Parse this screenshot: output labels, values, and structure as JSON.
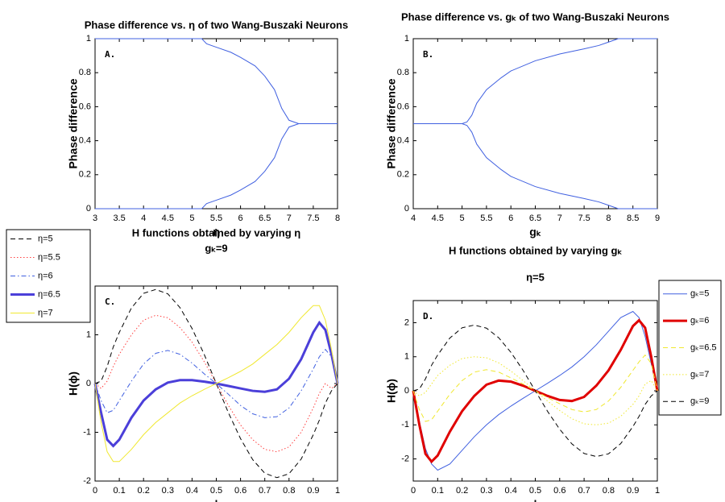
{
  "chart_data": [
    {
      "type": "line",
      "title": "Phase difference vs. η of two Wang-Buszaki Neurons",
      "xlabel": "η",
      "ylabel": "Phase difference",
      "annotation": "A.",
      "x": [
        3,
        3.5,
        4,
        4.5,
        5,
        5.2,
        5.3,
        5.5,
        5.8,
        6,
        6.3,
        6.5,
        6.7,
        6.85,
        7,
        7.2,
        7.5,
        8
      ],
      "series": [
        {
          "color": "#4060e0",
          "style": "solid",
          "width": 1,
          "values": [
            1,
            1,
            1,
            1,
            1,
            1,
            0.97,
            0.95,
            0.92,
            0.89,
            0.84,
            0.78,
            0.7,
            0.59,
            0.52,
            0.5,
            0.5,
            0.5
          ]
        },
        {
          "color": "#4060e0",
          "style": "solid",
          "width": 1,
          "values": [
            0,
            0,
            0,
            0,
            0,
            0,
            0.03,
            0.05,
            0.08,
            0.11,
            0.16,
            0.22,
            0.3,
            0.41,
            0.48,
            0.5,
            0.5,
            0.5
          ]
        }
      ],
      "xlim": [
        3,
        8
      ],
      "xticks": [
        3,
        3.5,
        4,
        4.5,
        5,
        5.5,
        6,
        6.5,
        7,
        7.5,
        8
      ],
      "ylim": [
        0,
        1
      ],
      "yticks": [
        0,
        0.2,
        0.4,
        0.6,
        0.8,
        1
      ]
    },
    {
      "type": "line",
      "title": "Phase difference vs. gₖ of two Wang-Buszaki Neurons",
      "xlabel": "gₖ",
      "ylabel": "Phase difference",
      "annotation": "B.",
      "x": [
        4,
        4.5,
        5,
        5.1,
        5.2,
        5.3,
        5.5,
        5.8,
        6,
        6.5,
        7,
        7.5,
        7.8,
        8,
        8.1,
        8.2,
        8.5,
        9
      ],
      "series": [
        {
          "color": "#4060e0",
          "style": "solid",
          "width": 1,
          "values": [
            0.5,
            0.5,
            0.5,
            0.51,
            0.55,
            0.62,
            0.7,
            0.77,
            0.81,
            0.87,
            0.91,
            0.94,
            0.96,
            0.98,
            0.99,
            1,
            1,
            1
          ]
        },
        {
          "color": "#4060e0",
          "style": "solid",
          "width": 1,
          "values": [
            0.5,
            0.5,
            0.5,
            0.49,
            0.45,
            0.38,
            0.3,
            0.23,
            0.19,
            0.13,
            0.09,
            0.06,
            0.04,
            0.02,
            0.01,
            0,
            0,
            0
          ]
        }
      ],
      "xlim": [
        4,
        9
      ],
      "xticks": [
        4,
        4.5,
        5,
        5.5,
        6,
        6.5,
        7,
        7.5,
        8,
        8.5,
        9
      ],
      "ylim": [
        0,
        1
      ],
      "yticks": [
        0,
        0.2,
        0.4,
        0.6,
        0.8,
        1
      ]
    },
    {
      "type": "line",
      "title": "H functions obtained by varying η",
      "subtitle": "gₖ=9",
      "xlabel": "ϕ",
      "ylabel": "H(ϕ)",
      "annotation": "C.",
      "legend": "outside-left",
      "x": [
        0,
        0.025,
        0.05,
        0.075,
        0.1,
        0.15,
        0.2,
        0.25,
        0.3,
        0.35,
        0.4,
        0.45,
        0.5,
        0.55,
        0.6,
        0.65,
        0.7,
        0.75,
        0.8,
        0.85,
        0.9,
        0.925,
        0.95,
        0.975,
        1
      ],
      "series": [
        {
          "name": "η=5",
          "color": "#000000",
          "style": "dashed",
          "width": 1,
          "values": [
            0,
            0.05,
            0.35,
            0.75,
            1.05,
            1.55,
            1.85,
            1.93,
            1.84,
            1.56,
            1.13,
            0.6,
            0,
            -0.6,
            -1.13,
            -1.56,
            -1.84,
            -1.93,
            -1.85,
            -1.55,
            -1.05,
            -0.75,
            -0.4,
            -0.15,
            0
          ]
        },
        {
          "name": "η=5.5",
          "color": "#ff4040",
          "style": "dotted",
          "width": 1,
          "values": [
            0,
            -0.1,
            0.05,
            0.35,
            0.6,
            1,
            1.3,
            1.4,
            1.35,
            1.15,
            0.85,
            0.45,
            0,
            -0.45,
            -0.85,
            -1.15,
            -1.35,
            -1.4,
            -1.3,
            -1,
            -0.5,
            -0.2,
            0,
            -0.1,
            0
          ]
        },
        {
          "name": "η=6",
          "color": "#4060e0",
          "style": "dashdot",
          "width": 1,
          "values": [
            0,
            -0.35,
            -0.6,
            -0.55,
            -0.35,
            0.05,
            0.4,
            0.62,
            0.68,
            0.6,
            0.42,
            0.2,
            0,
            -0.22,
            -0.45,
            -0.62,
            -0.7,
            -0.68,
            -0.5,
            -0.15,
            0.3,
            0.55,
            0.7,
            0.55,
            0
          ]
        },
        {
          "name": "η=6.5",
          "color": "#4b3fd9",
          "style": "solid",
          "width": 3,
          "values": [
            0,
            -0.6,
            -1.15,
            -1.28,
            -1.15,
            -0.7,
            -0.35,
            -0.12,
            0.02,
            0.07,
            0.07,
            0.04,
            0,
            -0.05,
            -0.1,
            -0.15,
            -0.17,
            -0.12,
            0.1,
            0.5,
            1.05,
            1.25,
            1.1,
            0.6,
            0
          ]
        },
        {
          "name": "η=7",
          "color": "#f0e830",
          "style": "solid",
          "width": 1,
          "values": [
            0,
            -0.8,
            -1.4,
            -1.6,
            -1.6,
            -1.35,
            -1.05,
            -0.8,
            -0.6,
            -0.4,
            -0.25,
            -0.12,
            0,
            0.12,
            0.25,
            0.4,
            0.6,
            0.8,
            1.05,
            1.35,
            1.6,
            1.6,
            1.3,
            0.7,
            0
          ]
        }
      ],
      "xlim": [
        0,
        1
      ],
      "xticks": [
        0,
        0.1,
        0.2,
        0.3,
        0.4,
        0.5,
        0.6,
        0.7,
        0.8,
        0.9,
        1
      ],
      "ylim": [
        -2,
        2
      ],
      "yticks": [
        -2,
        -1,
        0,
        1,
        2
      ]
    },
    {
      "type": "line",
      "title": "H functions obtained by varying gₖ",
      "subtitle": "η=5",
      "xlabel": "ϕ",
      "ylabel": "H(ϕ)",
      "annotation": "D.",
      "legend": "outside-right",
      "x": [
        0,
        0.025,
        0.05,
        0.075,
        0.1,
        0.15,
        0.2,
        0.25,
        0.3,
        0.35,
        0.4,
        0.45,
        0.5,
        0.55,
        0.6,
        0.65,
        0.7,
        0.75,
        0.8,
        0.85,
        0.9,
        0.925,
        0.95,
        0.975,
        1
      ],
      "series": [
        {
          "name": "gₖ=5",
          "color": "#4060e0",
          "style": "solid",
          "width": 1,
          "values": [
            0,
            -0.9,
            -1.7,
            -2.15,
            -2.33,
            -2.15,
            -1.75,
            -1.35,
            -1,
            -0.7,
            -0.45,
            -0.22,
            0,
            0.22,
            0.45,
            0.7,
            1,
            1.35,
            1.75,
            2.15,
            2.33,
            2.15,
            1.6,
            0.8,
            0
          ]
        },
        {
          "name": "gₖ=6",
          "color": "#e00000",
          "style": "solid",
          "width": 3,
          "values": [
            0,
            -1,
            -1.85,
            -2.08,
            -1.9,
            -1.2,
            -0.6,
            -0.15,
            0.18,
            0.3,
            0.27,
            0.15,
            0,
            -0.15,
            -0.27,
            -0.3,
            -0.18,
            0.15,
            0.6,
            1.2,
            1.9,
            2.07,
            1.85,
            1,
            0
          ]
        },
        {
          "name": "gₖ=6.5",
          "color": "#f0e830",
          "style": "dashed",
          "width": 1,
          "values": [
            0,
            -0.55,
            -0.9,
            -0.85,
            -0.6,
            -0.1,
            0.3,
            0.55,
            0.62,
            0.55,
            0.38,
            0.2,
            0,
            -0.2,
            -0.38,
            -0.55,
            -0.62,
            -0.55,
            -0.3,
            0.1,
            0.6,
            0.85,
            1.05,
            0.8,
            0
          ]
        },
        {
          "name": "gₖ=7",
          "color": "#f0e830",
          "style": "dotted",
          "width": 1,
          "values": [
            0,
            -0.15,
            -0.05,
            0.2,
            0.45,
            0.75,
            0.95,
            1,
            0.97,
            0.82,
            0.58,
            0.3,
            0,
            -0.3,
            -0.58,
            -0.82,
            -0.97,
            -1,
            -0.95,
            -0.75,
            -0.4,
            -0.15,
            0.2,
            0.3,
            0
          ]
        },
        {
          "name": "gₖ=9",
          "color": "#000000",
          "style": "dashed",
          "width": 1,
          "values": [
            0,
            0.05,
            0.35,
            0.75,
            1.05,
            1.55,
            1.85,
            1.93,
            1.84,
            1.56,
            1.13,
            0.6,
            0,
            -0.6,
            -1.13,
            -1.56,
            -1.84,
            -1.93,
            -1.85,
            -1.55,
            -1.05,
            -0.75,
            -0.4,
            -0.15,
            0
          ]
        }
      ],
      "xlim": [
        0,
        1
      ],
      "xticks": [
        0,
        0.1,
        0.2,
        0.3,
        0.4,
        0.5,
        0.6,
        0.7,
        0.8,
        0.9,
        1
      ],
      "ylim": [
        -2.65,
        2.65
      ],
      "yticks": [
        -2,
        -1,
        0,
        1,
        2
      ]
    }
  ]
}
